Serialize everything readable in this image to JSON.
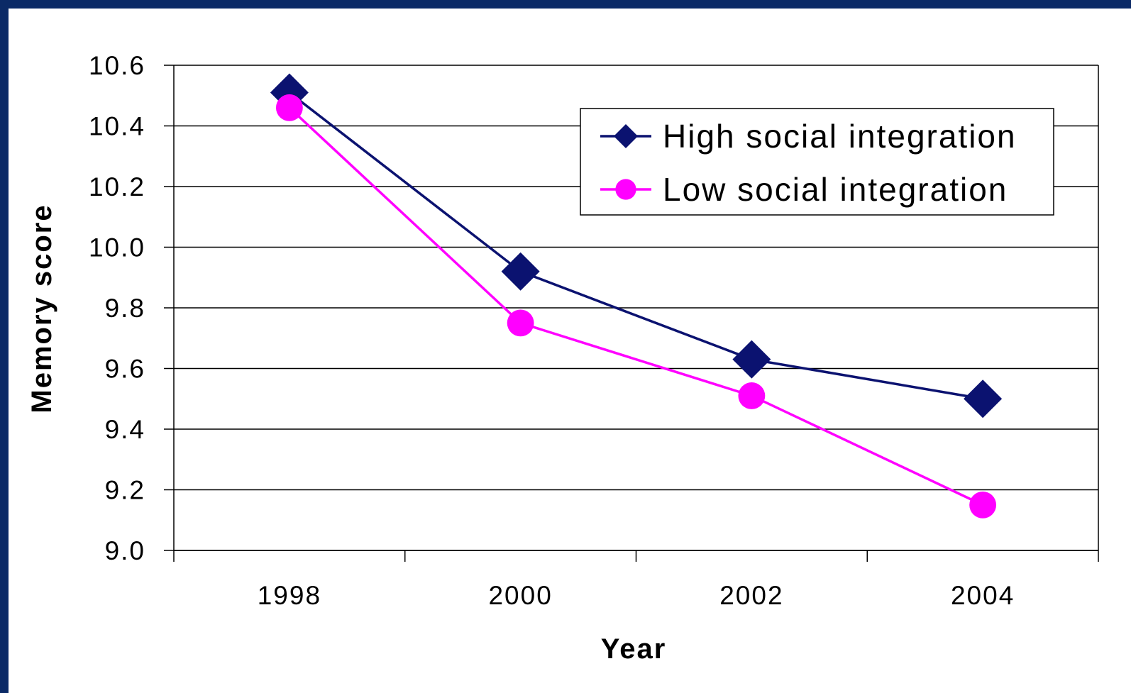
{
  "colors": {
    "frame": "#0b2a66",
    "background": "#ffffff",
    "high_series": "#0b1270",
    "low_series": "#ff00ff",
    "grid": "#000000"
  },
  "chart_data": {
    "type": "line",
    "xlabel": "Year",
    "ylabel": "Memory score",
    "categories": [
      "1998",
      "2000",
      "2002",
      "2004"
    ],
    "ylim": [
      9.0,
      10.6
    ],
    "yticks": [
      "10.6",
      "10.4",
      "10.2",
      "10.0",
      "9.8",
      "9.6",
      "9.4",
      "9.2",
      "9.0"
    ],
    "grid": "horizontal",
    "legend_position": "top-right",
    "series": [
      {
        "name": "High social integration",
        "values": [
          10.51,
          9.92,
          9.63,
          9.5
        ],
        "marker": "diamond",
        "color": "#0b1270"
      },
      {
        "name": "Low social integration",
        "values": [
          10.46,
          9.75,
          9.51,
          9.15
        ],
        "marker": "circle",
        "color": "#ff00ff"
      }
    ]
  }
}
